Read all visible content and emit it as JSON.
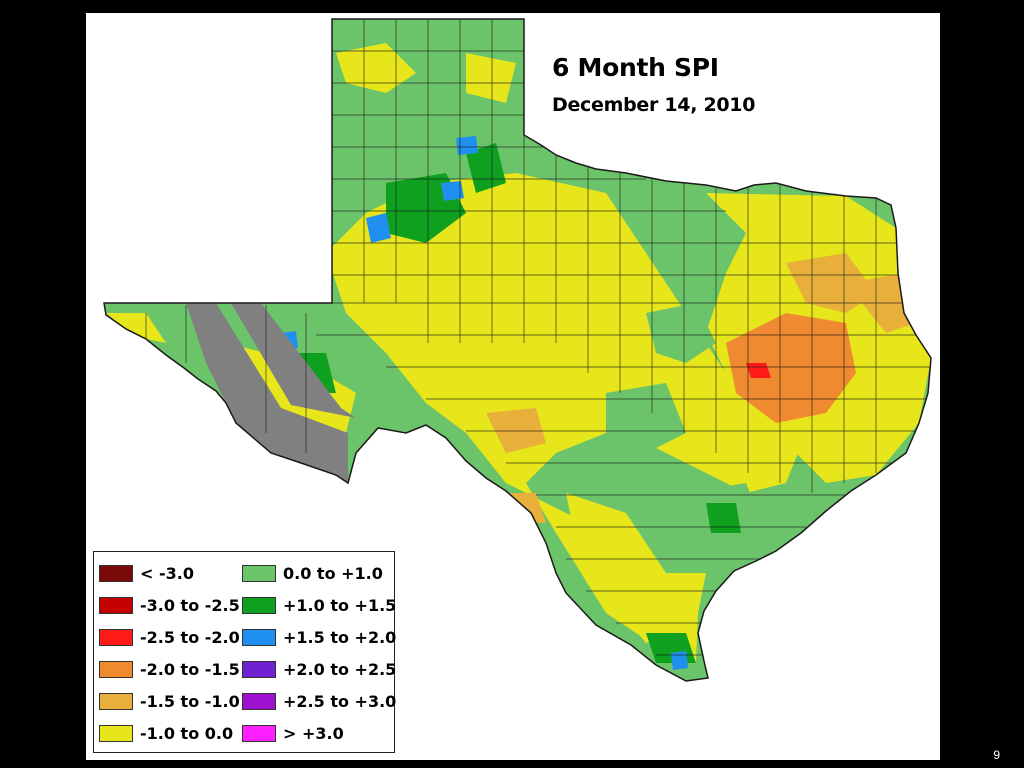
{
  "title": "6 Month SPI",
  "subtitle": "December 14, 2010",
  "page_number": "9",
  "colors": {
    "slide_bg": "#ffffff",
    "outer_bg": "#000000",
    "no_data": "#808080",
    "county_lines": "#1a1a1a"
  },
  "legend": {
    "left": [
      {
        "label": "< -3.0",
        "color": "#7a0a0a"
      },
      {
        "label": "-3.0 to -2.5",
        "color": "#c40000"
      },
      {
        "label": "-2.5 to -2.0",
        "color": "#ff1a1a"
      },
      {
        "label": "-2.0 to -1.5",
        "color": "#f08a30"
      },
      {
        "label": "-1.5 to -1.0",
        "color": "#e8b03a"
      },
      {
        "label": "-1.0 to 0.0",
        "color": "#e6e61a"
      }
    ],
    "right": [
      {
        "label": "0.0 to +1.0",
        "color": "#6cc46a"
      },
      {
        "label": "+1.0 to +1.5",
        "color": "#10a020"
      },
      {
        "label": "+1.5 to +2.0",
        "color": "#2090f0"
      },
      {
        "label": "+2.0 to +2.5",
        "color": "#7020d0"
      },
      {
        "label": "+2.5 to +3.0",
        "color": "#a010d0"
      },
      {
        "label": "> +3.0",
        "color": "#ff20ff"
      }
    ]
  }
}
